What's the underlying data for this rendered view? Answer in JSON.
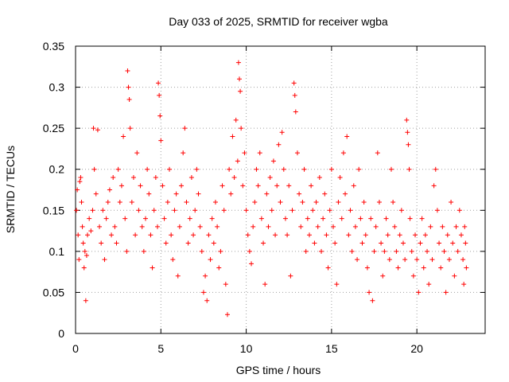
{
  "chart_data": {
    "type": "scatter",
    "title": "Day 033 of 2025, SRMTID for receiver wgba",
    "xlabel": "GPS time / hours",
    "ylabel": "SRMTID / TECUs",
    "xlim": [
      0,
      24
    ],
    "ylim": [
      0,
      0.35
    ],
    "xticks": [
      0,
      5,
      10,
      15,
      20
    ],
    "xtick_labels": [
      "0",
      "5",
      "10",
      "15",
      "20"
    ],
    "yticks": [
      0,
      0.05,
      0.1,
      0.15,
      0.2,
      0.25,
      0.3,
      0.35
    ],
    "ytick_labels": [
      "0",
      "0.05",
      "0.1",
      "0.15",
      "0.2",
      "0.25",
      "0.3",
      "0.35"
    ],
    "grid": true,
    "marker": "+",
    "series": [
      {
        "name": "SRMTID",
        "color": "#ff0000",
        "points": [
          [
            0.05,
            0.15
          ],
          [
            0.1,
            0.175
          ],
          [
            0.15,
            0.12
          ],
          [
            0.2,
            0.09
          ],
          [
            0.25,
            0.185
          ],
          [
            0.3,
            0.19
          ],
          [
            0.35,
            0.16
          ],
          [
            0.4,
            0.13
          ],
          [
            0.45,
            0.11
          ],
          [
            0.5,
            0.08
          ],
          [
            0.55,
            0.1
          ],
          [
            0.6,
            0.04
          ],
          [
            0.65,
            0.095
          ],
          [
            0.7,
            0.12
          ],
          [
            0.8,
            0.14
          ],
          [
            0.9,
            0.125
          ],
          [
            1.0,
            0.15
          ],
          [
            1.05,
            0.25
          ],
          [
            1.1,
            0.2
          ],
          [
            1.2,
            0.17
          ],
          [
            1.3,
            0.248
          ],
          [
            1.4,
            0.13
          ],
          [
            1.5,
            0.11
          ],
          [
            1.6,
            0.15
          ],
          [
            1.7,
            0.09
          ],
          [
            1.8,
            0.14
          ],
          [
            1.9,
            0.16
          ],
          [
            2.0,
            0.175
          ],
          [
            2.1,
            0.12
          ],
          [
            2.2,
            0.19
          ],
          [
            2.3,
            0.13
          ],
          [
            2.4,
            0.11
          ],
          [
            2.5,
            0.2
          ],
          [
            2.6,
            0.16
          ],
          [
            2.7,
            0.18
          ],
          [
            2.8,
            0.24
          ],
          [
            2.9,
            0.14
          ],
          [
            3.0,
            0.1
          ],
          [
            3.05,
            0.32
          ],
          [
            3.1,
            0.3
          ],
          [
            3.15,
            0.285
          ],
          [
            3.2,
            0.25
          ],
          [
            3.3,
            0.16
          ],
          [
            3.4,
            0.19
          ],
          [
            3.5,
            0.12
          ],
          [
            3.6,
            0.22
          ],
          [
            3.7,
            0.15
          ],
          [
            3.8,
            0.18
          ],
          [
            3.9,
            0.13
          ],
          [
            4.0,
            0.1
          ],
          [
            4.1,
            0.14
          ],
          [
            4.2,
            0.2
          ],
          [
            4.3,
            0.17
          ],
          [
            4.4,
            0.12
          ],
          [
            4.5,
            0.08
          ],
          [
            4.6,
            0.15
          ],
          [
            4.7,
            0.19
          ],
          [
            4.8,
            0.13
          ],
          [
            4.85,
            0.305
          ],
          [
            4.9,
            0.29
          ],
          [
            4.95,
            0.265
          ],
          [
            5.0,
            0.235
          ],
          [
            5.1,
            0.18
          ],
          [
            5.2,
            0.14
          ],
          [
            5.3,
            0.11
          ],
          [
            5.4,
            0.16
          ],
          [
            5.5,
            0.2
          ],
          [
            5.6,
            0.12
          ],
          [
            5.7,
            0.09
          ],
          [
            5.8,
            0.15
          ],
          [
            5.9,
            0.17
          ],
          [
            6.0,
            0.07
          ],
          [
            6.1,
            0.13
          ],
          [
            6.2,
            0.18
          ],
          [
            6.3,
            0.22
          ],
          [
            6.4,
            0.25
          ],
          [
            6.5,
            0.16
          ],
          [
            6.6,
            0.11
          ],
          [
            6.7,
            0.14
          ],
          [
            6.8,
            0.19
          ],
          [
            6.9,
            0.12
          ],
          [
            7.0,
            0.15
          ],
          [
            7.1,
            0.2
          ],
          [
            7.2,
            0.17
          ],
          [
            7.3,
            0.13
          ],
          [
            7.4,
            0.1
          ],
          [
            7.5,
            0.05
          ],
          [
            7.6,
            0.07
          ],
          [
            7.7,
            0.04
          ],
          [
            7.8,
            0.12
          ],
          [
            7.9,
            0.09
          ],
          [
            8.0,
            0.14
          ],
          [
            8.1,
            0.11
          ],
          [
            8.2,
            0.16
          ],
          [
            8.3,
            0.13
          ],
          [
            8.4,
            0.08
          ],
          [
            8.5,
            0.1
          ],
          [
            8.6,
            0.18
          ],
          [
            8.7,
            0.15
          ],
          [
            8.8,
            0.06
          ],
          [
            8.9,
            0.023
          ],
          [
            9.0,
            0.2
          ],
          [
            9.1,
            0.17
          ],
          [
            9.2,
            0.24
          ],
          [
            9.3,
            0.19
          ],
          [
            9.4,
            0.26
          ],
          [
            9.5,
            0.21
          ],
          [
            9.55,
            0.33
          ],
          [
            9.6,
            0.31
          ],
          [
            9.65,
            0.295
          ],
          [
            9.7,
            0.25
          ],
          [
            9.8,
            0.18
          ],
          [
            9.9,
            0.22
          ],
          [
            10.0,
            0.15
          ],
          [
            10.1,
            0.12
          ],
          [
            10.2,
            0.1
          ],
          [
            10.3,
            0.085
          ],
          [
            10.4,
            0.13
          ],
          [
            10.5,
            0.16
          ],
          [
            10.6,
            0.2
          ],
          [
            10.7,
            0.18
          ],
          [
            10.8,
            0.22
          ],
          [
            10.9,
            0.14
          ],
          [
            11.0,
            0.11
          ],
          [
            11.1,
            0.06
          ],
          [
            11.2,
            0.17
          ],
          [
            11.3,
            0.13
          ],
          [
            11.4,
            0.19
          ],
          [
            11.5,
            0.15
          ],
          [
            11.6,
            0.21
          ],
          [
            11.7,
            0.12
          ],
          [
            11.8,
            0.18
          ],
          [
            11.9,
            0.23
          ],
          [
            12.0,
            0.16
          ],
          [
            12.1,
            0.245
          ],
          [
            12.2,
            0.2
          ],
          [
            12.3,
            0.14
          ],
          [
            12.4,
            0.12
          ],
          [
            12.5,
            0.18
          ],
          [
            12.6,
            0.07
          ],
          [
            12.7,
            0.15
          ],
          [
            12.8,
            0.305
          ],
          [
            12.85,
            0.29
          ],
          [
            12.9,
            0.27
          ],
          [
            13.0,
            0.22
          ],
          [
            13.1,
            0.17
          ],
          [
            13.2,
            0.13
          ],
          [
            13.3,
            0.16
          ],
          [
            13.4,
            0.2
          ],
          [
            13.5,
            0.1
          ],
          [
            13.6,
            0.14
          ],
          [
            13.7,
            0.12
          ],
          [
            13.8,
            0.18
          ],
          [
            13.9,
            0.15
          ],
          [
            14.0,
            0.11
          ],
          [
            14.1,
            0.16
          ],
          [
            14.2,
            0.13
          ],
          [
            14.3,
            0.19
          ],
          [
            14.4,
            0.1
          ],
          [
            14.5,
            0.14
          ],
          [
            14.6,
            0.17
          ],
          [
            14.7,
            0.12
          ],
          [
            14.8,
            0.08
          ],
          [
            14.9,
            0.15
          ],
          [
            15.0,
            0.2
          ],
          [
            15.1,
            0.13
          ],
          [
            15.2,
            0.11
          ],
          [
            15.3,
            0.06
          ],
          [
            15.4,
            0.16
          ],
          [
            15.5,
            0.19
          ],
          [
            15.6,
            0.14
          ],
          [
            15.7,
            0.22
          ],
          [
            15.8,
            0.17
          ],
          [
            15.9,
            0.24
          ],
          [
            16.0,
            0.12
          ],
          [
            16.1,
            0.15
          ],
          [
            16.2,
            0.1
          ],
          [
            16.3,
            0.18
          ],
          [
            16.4,
            0.13
          ],
          [
            16.5,
            0.09
          ],
          [
            16.6,
            0.2
          ],
          [
            16.7,
            0.14
          ],
          [
            16.8,
            0.11
          ],
          [
            16.9,
            0.16
          ],
          [
            17.0,
            0.12
          ],
          [
            17.1,
            0.08
          ],
          [
            17.2,
            0.05
          ],
          [
            17.3,
            0.14
          ],
          [
            17.4,
            0.04
          ],
          [
            17.5,
            0.1
          ],
          [
            17.6,
            0.13
          ],
          [
            17.7,
            0.22
          ],
          [
            17.8,
            0.16
          ],
          [
            17.9,
            0.11
          ],
          [
            18.0,
            0.07
          ],
          [
            18.1,
            0.1
          ],
          [
            18.2,
            0.14
          ],
          [
            18.3,
            0.12
          ],
          [
            18.4,
            0.09
          ],
          [
            18.5,
            0.2
          ],
          [
            18.6,
            0.16
          ],
          [
            18.7,
            0.13
          ],
          [
            18.8,
            0.1
          ],
          [
            18.9,
            0.08
          ],
          [
            19.0,
            0.12
          ],
          [
            19.1,
            0.15
          ],
          [
            19.2,
            0.11
          ],
          [
            19.3,
            0.09
          ],
          [
            19.4,
            0.26
          ],
          [
            19.45,
            0.245
          ],
          [
            19.5,
            0.23
          ],
          [
            19.55,
            0.2
          ],
          [
            19.6,
            0.14
          ],
          [
            19.7,
            0.1
          ],
          [
            19.8,
            0.07
          ],
          [
            19.9,
            0.12
          ],
          [
            20.0,
            0.09
          ],
          [
            20.1,
            0.05
          ],
          [
            20.2,
            0.11
          ],
          [
            20.3,
            0.14
          ],
          [
            20.4,
            0.08
          ],
          [
            20.5,
            0.12
          ],
          [
            20.6,
            0.1
          ],
          [
            20.7,
            0.06
          ],
          [
            20.8,
            0.13
          ],
          [
            20.9,
            0.09
          ],
          [
            21.0,
            0.18
          ],
          [
            21.1,
            0.2
          ],
          [
            21.2,
            0.15
          ],
          [
            21.3,
            0.11
          ],
          [
            21.4,
            0.08
          ],
          [
            21.5,
            0.13
          ],
          [
            21.6,
            0.1
          ],
          [
            21.7,
            0.05
          ],
          [
            21.8,
            0.12
          ],
          [
            21.9,
            0.09
          ],
          [
            22.0,
            0.16
          ],
          [
            22.1,
            0.11
          ],
          [
            22.2,
            0.07
          ],
          [
            22.3,
            0.13
          ],
          [
            22.4,
            0.1
          ],
          [
            22.5,
            0.15
          ],
          [
            22.6,
            0.12
          ],
          [
            22.7,
            0.09
          ],
          [
            22.75,
            0.06
          ],
          [
            22.8,
            0.13
          ],
          [
            22.85,
            0.11
          ],
          [
            22.9,
            0.08
          ]
        ]
      }
    ]
  }
}
